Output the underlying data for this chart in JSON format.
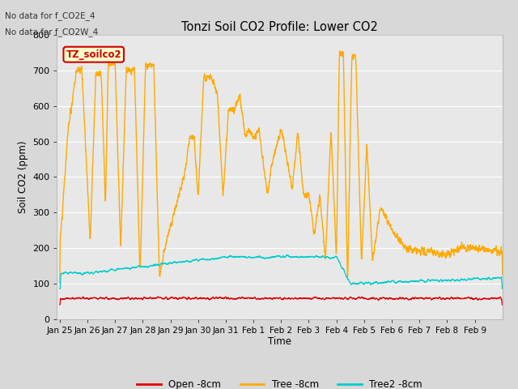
{
  "title": "Tonzi Soil CO2 Profile: Lower CO2",
  "ylabel": "Soil CO2 (ppm)",
  "xlabel": "Time",
  "annotations": [
    "No data for f_CO2E_4",
    "No data for f_CO2W_4"
  ],
  "box_label": "TZ_soilco2",
  "box_color": "#cc0000",
  "box_bg": "#ffffcc",
  "legend_labels": [
    "Open -8cm",
    "Tree -8cm",
    "Tree2 -8cm"
  ],
  "line_colors": [
    "#dd0000",
    "#ffaa00",
    "#00cccc"
  ],
  "ylim": [
    0,
    800
  ],
  "fig_bg": "#d8d8d8",
  "plot_bg": "#e8e8e8",
  "tick_labels": [
    "Jan 25",
    "Jan 26",
    "Jan 27",
    "Jan 28",
    "Jan 29",
    "Jan 30",
    "Jan 31",
    "Feb 1",
    "Feb 2",
    "Feb 3",
    "Feb 4",
    "Feb 5",
    "Feb 6",
    "Feb 7",
    "Feb 8",
    "Feb 9"
  ],
  "n_points": 4000
}
